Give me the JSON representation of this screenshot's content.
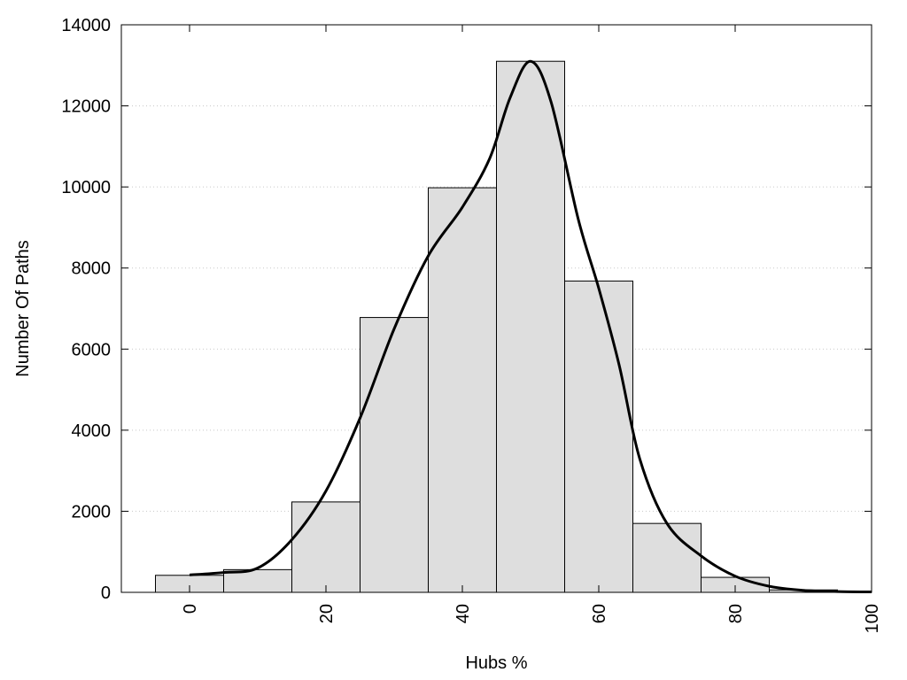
{
  "chart_data": {
    "type": "bar",
    "title": "",
    "xlabel": "Hubs %",
    "ylabel": "Number Of Paths",
    "xlim": [
      -10,
      100
    ],
    "ylim": [
      0,
      14000
    ],
    "x_ticks": [
      0,
      20,
      40,
      60,
      80,
      100
    ],
    "y_ticks": [
      0,
      2000,
      4000,
      6000,
      8000,
      10000,
      12000,
      14000
    ],
    "grid": "horizontal dotted",
    "bin_width": 10,
    "bins": [
      {
        "center": 0,
        "value": 420
      },
      {
        "center": 10,
        "value": 560
      },
      {
        "center": 20,
        "value": 2230
      },
      {
        "center": 30,
        "value": 6780
      },
      {
        "center": 40,
        "value": 9980
      },
      {
        "center": 50,
        "value": 13100
      },
      {
        "center": 60,
        "value": 7680
      },
      {
        "center": 70,
        "value": 1700
      },
      {
        "center": 80,
        "value": 370
      },
      {
        "center": 90,
        "value": 60
      }
    ],
    "density_curve": [
      [
        0,
        430
      ],
      [
        5,
        490
      ],
      [
        10,
        600
      ],
      [
        15,
        1300
      ],
      [
        20,
        2500
      ],
      [
        25,
        4300
      ],
      [
        30,
        6500
      ],
      [
        35,
        8300
      ],
      [
        40,
        9500
      ],
      [
        44,
        10700
      ],
      [
        47,
        12200
      ],
      [
        50,
        13100
      ],
      [
        53,
        12100
      ],
      [
        57,
        9200
      ],
      [
        60,
        7500
      ],
      [
        63,
        5600
      ],
      [
        66,
        3300
      ],
      [
        70,
        1700
      ],
      [
        75,
        900
      ],
      [
        80,
        400
      ],
      [
        85,
        150
      ],
      [
        90,
        50
      ],
      [
        95,
        20
      ],
      [
        100,
        10
      ]
    ],
    "colors": {
      "bar_fill": "#dedede",
      "bar_stroke": "#000000",
      "curve": "#000000",
      "grid": "#c8c8c8"
    }
  }
}
